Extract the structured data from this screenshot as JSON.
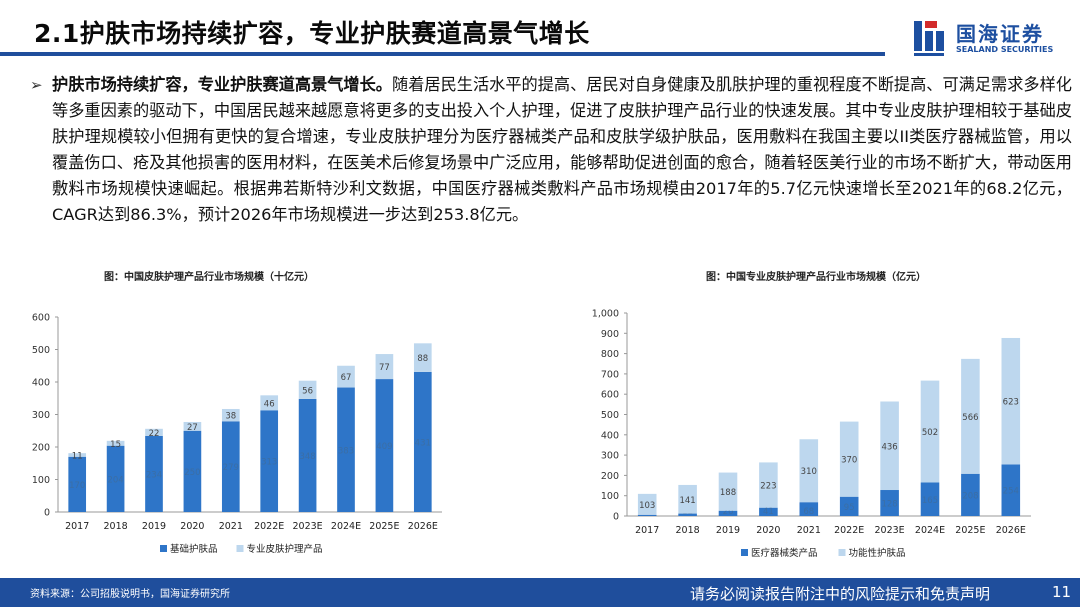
{
  "header": {
    "title": "2.1护肤市场持续扩容，专业护肤赛道高景气增长",
    "logo_cn": "国海证券",
    "logo_en": "SEALAND SECURITIES",
    "accent": "#1f4e9c"
  },
  "bullet": {
    "marker": "➢",
    "lead": "护肤市场持续扩容，专业护肤赛道高景气增长。",
    "body": "随着居民生活水平的提高、居民对自身健康及肌肤护理的重视程度不断提高、可满足需求多样化等多重因素的驱动下，中国居民越来越愿意将更多的支出投入个人护理，促进了皮肤护理产品行业的快速发展。其中专业皮肤护理相较于基础皮肤护理规模较小但拥有更快的复合增速，专业皮肤护理分为医疗器械类产品和皮肤学级护肤品，医用敷料在我国主要以II类医疗器械监管，用以覆盖伤口、疮及其他损害的医用材料，在医美术后修复场景中广泛应用，能够帮助促进创面的愈合，随着轻医美行业的市场不断扩大，带动医用敷料市场规模快速崛起。根据弗若斯特沙利文数据，中国医疗器械类敷料产品市场规模由2017年的5.7亿元快速增长至2021年的68.2亿元，CAGR达到86.3%，预计2026年市场规模进一步达到253.8亿元。"
  },
  "chart_data": [
    {
      "type": "bar",
      "stacked": true,
      "title": "图：中国皮肤护理产品行业市场规模（十亿元）",
      "categories": [
        "2017",
        "2018",
        "2019",
        "2020",
        "2021",
        "2022E",
        "2023E",
        "2024E",
        "2025E",
        "2026E"
      ],
      "series": [
        {
          "name": "基础护肤品",
          "color": "#2e75c8",
          "values": [
            170,
            204,
            234,
            250,
            279,
            313,
            348,
            383,
            409,
            431
          ]
        },
        {
          "name": "专业皮肤护理产品",
          "color": "#bdd7ee",
          "values": [
            11,
            15,
            22,
            27,
            38,
            46,
            56,
            67,
            77,
            88
          ]
        }
      ],
      "ylim": [
        0,
        600
      ],
      "yticks": [
        "0",
        "100",
        "200",
        "300",
        "400",
        "500",
        "600"
      ],
      "grid": false,
      "legend": "bottom"
    },
    {
      "type": "bar",
      "stacked": true,
      "title": "图：中国专业皮肤护理产品行业市场规模（亿元）",
      "categories": [
        "2017",
        "2018",
        "2019",
        "2020",
        "2021",
        "2022E",
        "2023E",
        "2024E",
        "2025E",
        "2026E"
      ],
      "series": [
        {
          "name": "医疗器械类产品",
          "color": "#2e75c8",
          "values": [
            6,
            12,
            26,
            41,
            68,
            95,
            128,
            165,
            208,
            254
          ]
        },
        {
          "name": "功能性护肤品",
          "color": "#bdd7ee",
          "values": [
            103,
            141,
            188,
            223,
            310,
            370,
            436,
            502,
            566,
            623
          ]
        }
      ],
      "ylim": [
        0,
        1000
      ],
      "yticks": [
        "0",
        "100",
        "200",
        "300",
        "400",
        "500",
        "600",
        "700",
        "800",
        "900",
        "1,000"
      ],
      "grid": false,
      "legend": "bottom"
    }
  ],
  "footer": {
    "source": "资料来源：公司招股说明书，国海证券研究所",
    "disclaimer": "请务必阅读报告附注中的风险提示和免责声明",
    "page": "11"
  }
}
